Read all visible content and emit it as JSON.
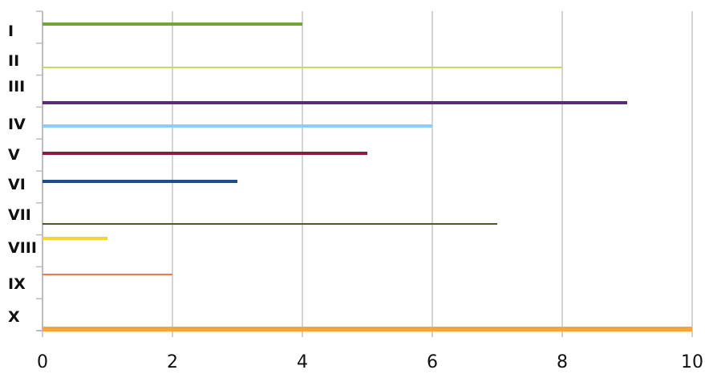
{
  "chart_data": {
    "type": "bar",
    "orientation": "horizontal",
    "title": "",
    "xlabel": "",
    "ylabel": "",
    "xlim": [
      0,
      10
    ],
    "x_ticks": [
      "0",
      "2",
      "4",
      "6",
      "8",
      "10"
    ],
    "grid": "vertical",
    "legend": "none",
    "categories": [
      "I",
      "II",
      "III",
      "IV",
      "V",
      "VI",
      "VII",
      "VIII",
      "IX",
      "X"
    ],
    "values": [
      4,
      8,
      9,
      6,
      5,
      3,
      7,
      1,
      2,
      10
    ],
    "colors": [
      "#6fa53a",
      "#c5dc5c",
      "#5b2a7a",
      "#8ecbf5",
      "#8c1c3e",
      "#1f4e82",
      "#4e5a22",
      "#f5d533",
      "#f07a4f",
      "#f5a638"
    ]
  }
}
